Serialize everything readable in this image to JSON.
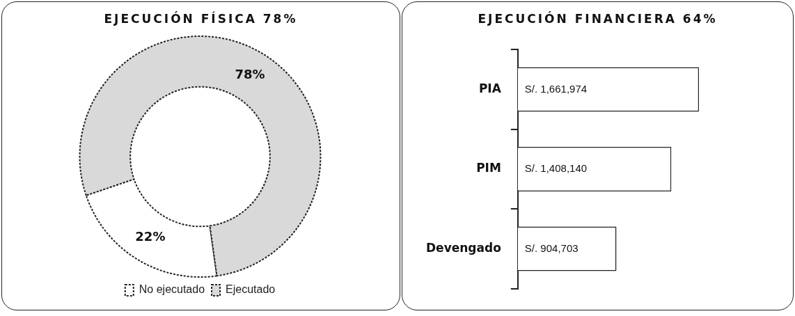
{
  "chart_data": [
    {
      "type": "donut",
      "title": "EJECUCIÓN FÍSICA 78%",
      "categories": [
        "No ejecutado",
        "Ejecutado"
      ],
      "values": [
        22,
        78
      ],
      "colors": [
        "#ffffff",
        "#d9d9d9"
      ],
      "value_labels": [
        "22%",
        "78%"
      ],
      "legend": "bottom"
    },
    {
      "type": "bar",
      "orientation": "horizontal",
      "title": "EJECUCIÓN FINANCIERA 64%",
      "categories": [
        "PIA",
        "PIM",
        "Devengado"
      ],
      "values": [
        1661974,
        1408140,
        904703
      ],
      "color": "#ffffff",
      "value_labels": [
        "S/. 1,661,974",
        "S/. 1,408,140",
        "S/. 904,703"
      ],
      "tick_labels": "y",
      "legend": false
    }
  ]
}
